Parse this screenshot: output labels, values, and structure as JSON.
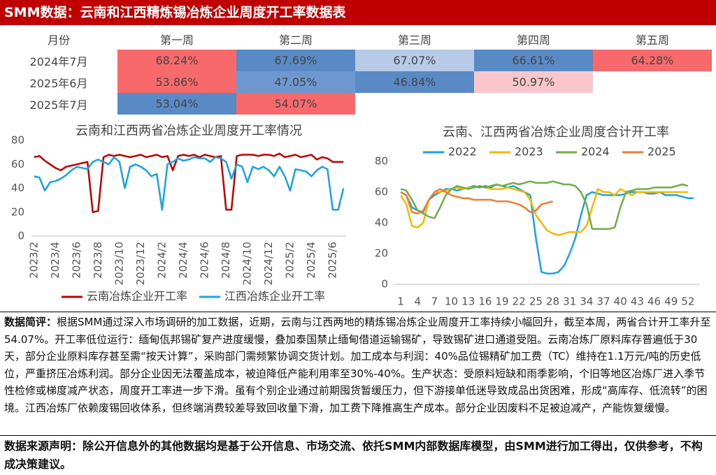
{
  "header": {
    "title": "SMM数据：云南和江西精炼锡冶炼企业周度开工率数据表"
  },
  "table": {
    "columns": [
      "月份",
      "第一周",
      "第二周",
      "第三周",
      "第四周",
      "第五周"
    ],
    "rows": [
      {
        "label": "2024年7月",
        "cells": [
          "68.24%",
          "67.69%",
          "67.07%",
          "66.61%",
          "64.28%"
        ],
        "colors": [
          "#f8696b",
          "#5a8ac6",
          "#b7cbe8",
          "#5a8ac6",
          "#f8696b"
        ]
      },
      {
        "label": "2025年6月",
        "cells": [
          "53.86%",
          "47.05%",
          "46.84%",
          "50.97%"
        ],
        "colors": [
          "#f8696b",
          "#6d97cf",
          "#5a8ac6",
          "#f9c6cb"
        ]
      },
      {
        "label": "2025年7月",
        "cells": [
          "53.04%",
          "54.07%"
        ],
        "colors": [
          "#5a8ac6",
          "#f8696b"
        ]
      }
    ]
  },
  "chart_data": [
    {
      "type": "line",
      "title": "云南和江西两省冶炼企业周度开工率情况",
      "categories": [
        "2023/2",
        null,
        null,
        null,
        "2023/4",
        null,
        null,
        null,
        "2023/6",
        null,
        null,
        null,
        "2023/8",
        null,
        null,
        null,
        "2023/10",
        null,
        null,
        null,
        "2023/12",
        null,
        null,
        null,
        "2024/2",
        null,
        null,
        null,
        "2024/4",
        null,
        null,
        null,
        "2024/6",
        null,
        null,
        null,
        "2024/8",
        null,
        null,
        null,
        "2024/10",
        null,
        null,
        null,
        "2024/12",
        null,
        null,
        null,
        "2025/2",
        null,
        null,
        null,
        "2025/4",
        null,
        null,
        null,
        "2025/6",
        null,
        null
      ],
      "series": [
        {
          "name": "云南冶炼企业开工率",
          "color": "#c00000",
          "values": [
            66,
            67,
            63,
            60,
            57,
            55,
            58,
            59,
            60,
            61,
            62,
            20,
            21,
            66,
            68,
            67,
            68,
            67,
            66,
            67,
            68,
            66,
            67,
            68,
            66,
            67,
            55,
            67,
            68,
            67,
            68,
            66,
            68,
            67,
            66,
            67,
            22,
            22,
            67,
            68,
            68,
            68,
            67,
            68,
            68,
            67,
            69,
            66,
            67,
            68,
            66,
            67,
            68,
            64,
            66,
            65,
            62,
            62,
            62
          ]
        },
        {
          "name": "江西冶炼企业开工率",
          "color": "#1aa3e0",
          "values": [
            50,
            49,
            38,
            45,
            46,
            48,
            51,
            55,
            58,
            57,
            56,
            62,
            64,
            62,
            60,
            66,
            62,
            40,
            58,
            60,
            58,
            55,
            50,
            52,
            22,
            60,
            62,
            65,
            63,
            64,
            66,
            65,
            65,
            62,
            66,
            65,
            62,
            48,
            60,
            58,
            45,
            58,
            56,
            58,
            55,
            50,
            58,
            50,
            38,
            56,
            55,
            54,
            50,
            55,
            58,
            56,
            22,
            22,
            40
          ]
        }
      ],
      "ylim": [
        0,
        80
      ],
      "yticks": [
        0,
        20,
        40,
        60,
        80
      ],
      "grid": false,
      "legend": "bottom"
    },
    {
      "type": "line",
      "title": "云南、江西两省冶炼企业周度合计开工率",
      "x": [
        1,
        2,
        3,
        4,
        5,
        6,
        7,
        8,
        9,
        10,
        11,
        12,
        13,
        14,
        15,
        16,
        17,
        18,
        19,
        20,
        21,
        22,
        23,
        24,
        25,
        26,
        27,
        28,
        29,
        30,
        31,
        32,
        33,
        34,
        35,
        36,
        37,
        38,
        39,
        40,
        41,
        42,
        43,
        44,
        45,
        46,
        47,
        48,
        49,
        50,
        51,
        52,
        53
      ],
      "series": [
        {
          "name": "2022",
          "color": "#1aa3e0",
          "values": [
            60,
            58,
            50,
            48,
            47,
            55,
            58,
            60,
            62,
            62,
            61,
            62,
            63,
            64,
            63,
            64,
            63,
            65,
            64,
            63,
            64,
            62,
            60,
            58,
            30,
            8,
            7,
            7,
            8,
            12,
            20,
            30,
            45,
            58,
            60,
            59,
            58,
            58,
            58,
            58,
            59,
            60,
            60,
            60,
            59,
            59,
            60,
            58,
            58,
            58,
            57,
            56,
            56
          ]
        },
        {
          "name": "2023",
          "color": "#f5b800",
          "values": [
            58,
            52,
            38,
            37,
            40,
            55,
            60,
            60,
            61,
            62,
            63,
            62,
            63,
            63,
            64,
            63,
            62,
            62,
            62,
            63,
            62,
            61,
            60,
            55,
            45,
            40,
            35,
            33,
            32,
            33,
            34,
            34,
            34,
            38,
            50,
            62,
            60,
            60,
            58,
            62,
            60,
            58,
            60,
            60,
            60,
            60,
            60,
            60,
            60,
            60,
            60,
            60,
            null
          ]
        },
        {
          "name": "2024",
          "color": "#70ad47",
          "values": [
            62,
            61,
            55,
            48,
            46,
            44,
            43,
            50,
            58,
            62,
            64,
            63,
            62,
            63,
            64,
            63,
            64,
            65,
            64,
            65,
            66,
            65,
            66,
            67,
            66,
            66,
            66,
            67,
            66,
            65,
            65,
            64,
            60,
            52,
            36,
            36,
            36,
            36,
            37,
            50,
            60,
            61,
            62,
            62,
            62,
            63,
            63,
            63,
            63,
            64,
            65,
            64,
            null
          ]
        },
        {
          "name": "2025",
          "color": "#ed7d31",
          "values": [
            60,
            58,
            47,
            46,
            48,
            55,
            60,
            62,
            60,
            58,
            57,
            56,
            56,
            55,
            55,
            55,
            55,
            54,
            54,
            54,
            53,
            52,
            50,
            47,
            48,
            52,
            53,
            54,
            null,
            null,
            null,
            null,
            null,
            null,
            null,
            null,
            null,
            null,
            null,
            null,
            null,
            null,
            null,
            null,
            null,
            null,
            null,
            null,
            null,
            null,
            null,
            null,
            null
          ]
        }
      ],
      "xlim": [
        0,
        54
      ],
      "xticks": [
        1,
        4,
        7,
        10,
        13,
        16,
        19,
        22,
        25,
        28,
        31,
        34,
        37,
        40,
        43,
        46,
        49,
        52
      ],
      "ylim": [
        0,
        80
      ],
      "yticks": [
        0,
        20,
        40,
        60,
        80
      ],
      "grid": false,
      "legend": "top"
    }
  ],
  "commentary": {
    "label": "数据简评：",
    "text": "根据SMM通过深入市场调研的加工数据，近期，云南与江西两地的精炼锡冶炼企业周度开工率持续小幅回升，截至本周，两省合计开工率升至54.07%。开工率低位运行：缅甸佤邦锡矿复产进度缓慢，叠加泰国禁止缅甸借道运输锡矿，导致锡矿进口通道受阻。云南冶炼厂原料库存普遍低于30天，部分企业原料库存甚至需“按天计算”，采购部门需频繁协调交货计划。加工成本与利润：40%品位锡精矿加工费（TC）维持在1.1万元/吨的历史低位，严重挤压冶炼利润。部分企业因无法覆盖成本，被迫降低产能利用率至30%-40%。生产状态：受原料短缺和雨季影响，个旧等地区冶炼厂进入季节性检修或梯度减产状态，周度开工率进一步下滑。虽有个别企业通过前期囤货暂缓压力，但下游接单低迷导致成品出货困难，形成“高库存、低流转”的困境。江西冶炼厂依赖废锡回收体系，但终端消费较差导致回收量下滑，加工费下降推高生产成本。部分企业因废料不足被迫减产，产能恢复缓慢。"
  },
  "source": {
    "label": "数据来源声明：",
    "text": "除公开信息外的其他数据均是基于公开信息、市场交流、依托SMM内部数据库模型，由SMM进行加工得出，仅供参考，不构成决策建议。"
  }
}
